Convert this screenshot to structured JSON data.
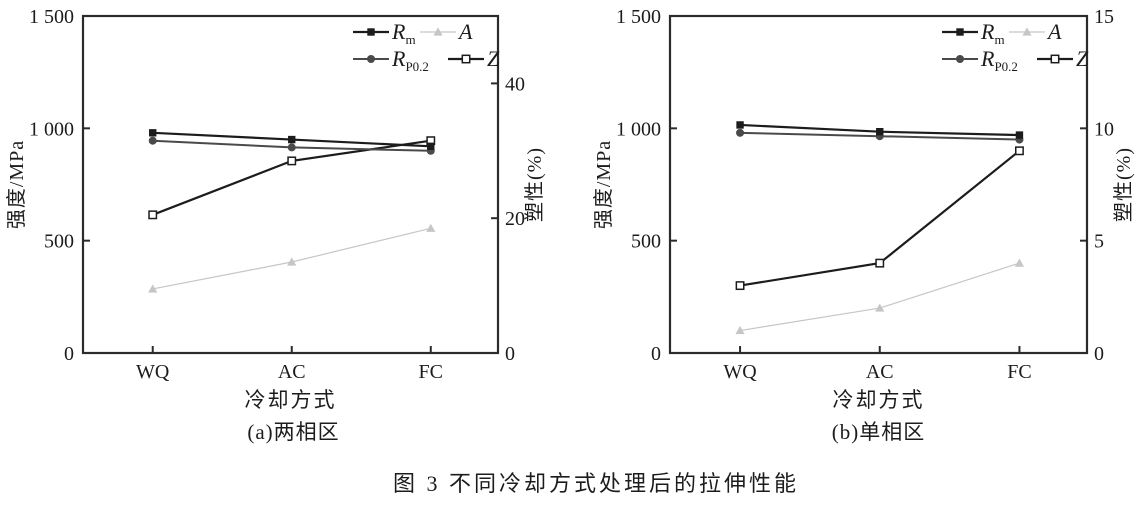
{
  "caption": "图 3 不同冷却方式处理后的拉伸性能",
  "colors": {
    "black": "#1c1c1c",
    "dark_gray": "#4a4a4a",
    "light_gray": "#c6c6c6",
    "axis": "#2b2b2b"
  },
  "chart_data": [
    {
      "type": "line",
      "subtitle": "(a)两相区",
      "xlabel": "冷却方式",
      "categories": [
        "WQ",
        "AC",
        "FC"
      ],
      "grid": "off",
      "legend_position": "top-right-inside",
      "left_axis": {
        "label": "强度/MPa",
        "min": 0,
        "max": 1500,
        "ticks": [
          {
            "v": 0,
            "label": "0"
          },
          {
            "v": 500,
            "label": "500"
          },
          {
            "v": 1000,
            "label": "1 000"
          },
          {
            "v": 1500,
            "label": "1 500"
          }
        ]
      },
      "right_axis": {
        "label": "塑性(%)",
        "min": 0,
        "max": 50,
        "ticks": [
          {
            "v": 0,
            "label": "0"
          },
          {
            "v": 20,
            "label": "20"
          },
          {
            "v": 40,
            "label": "40"
          }
        ]
      },
      "series": [
        {
          "id": "A",
          "label_base": "A",
          "label_sub": "",
          "axis": "right",
          "marker": "triangle",
          "color": "light_gray",
          "line_width": 1.2,
          "values": [
            9.5,
            13.5,
            18.5
          ]
        },
        {
          "id": "Z",
          "label_base": "Z",
          "label_sub": "",
          "axis": "right",
          "marker": "open-square",
          "color": "black",
          "line_width": 2.2,
          "values": [
            20.5,
            28.5,
            31.5
          ]
        },
        {
          "id": "RP0.2",
          "label_base": "R",
          "label_sub": "P0.2",
          "axis": "left",
          "marker": "circle",
          "color": "dark_gray",
          "line_width": 2,
          "values": [
            945,
            915,
            900
          ]
        },
        {
          "id": "Rm",
          "label_base": "R",
          "label_sub": "m",
          "axis": "left",
          "marker": "square",
          "color": "black",
          "line_width": 2.2,
          "values": [
            980,
            950,
            920
          ]
        }
      ],
      "legend_rows": [
        [
          "Rm",
          "A"
        ],
        [
          "RP0.2",
          "Z"
        ]
      ]
    },
    {
      "type": "line",
      "subtitle": "(b)单相区",
      "xlabel": "冷却方式",
      "categories": [
        "WQ",
        "AC",
        "FC"
      ],
      "grid": "off",
      "legend_position": "top-right-inside",
      "left_axis": {
        "label": "强度/MPa",
        "min": 0,
        "max": 1500,
        "ticks": [
          {
            "v": 0,
            "label": "0"
          },
          {
            "v": 500,
            "label": "500"
          },
          {
            "v": 1000,
            "label": "1 000"
          },
          {
            "v": 1500,
            "label": "1 500"
          }
        ]
      },
      "right_axis": {
        "label": "塑性(%)",
        "min": 0,
        "max": 15,
        "ticks": [
          {
            "v": 0,
            "label": "0"
          },
          {
            "v": 5,
            "label": "5"
          },
          {
            "v": 10,
            "label": "10"
          },
          {
            "v": 15,
            "label": "15"
          }
        ]
      },
      "series": [
        {
          "id": "A",
          "label_base": "A",
          "label_sub": "",
          "axis": "right",
          "marker": "triangle",
          "color": "light_gray",
          "line_width": 1.2,
          "values": [
            1.0,
            2.0,
            4.0
          ]
        },
        {
          "id": "Z",
          "label_base": "Z",
          "label_sub": "",
          "axis": "right",
          "marker": "open-square",
          "color": "black",
          "line_width": 2.2,
          "values": [
            3.0,
            4.0,
            9.0
          ]
        },
        {
          "id": "RP0.2",
          "label_base": "R",
          "label_sub": "P0.2",
          "axis": "left",
          "marker": "circle",
          "color": "dark_gray",
          "line_width": 2,
          "values": [
            980,
            965,
            950
          ]
        },
        {
          "id": "Rm",
          "label_base": "R",
          "label_sub": "m",
          "axis": "left",
          "marker": "square",
          "color": "black",
          "line_width": 2.2,
          "values": [
            1015,
            985,
            970
          ]
        }
      ],
      "legend_rows": [
        [
          "Rm",
          "A"
        ],
        [
          "RP0.2",
          "Z"
        ]
      ]
    }
  ]
}
